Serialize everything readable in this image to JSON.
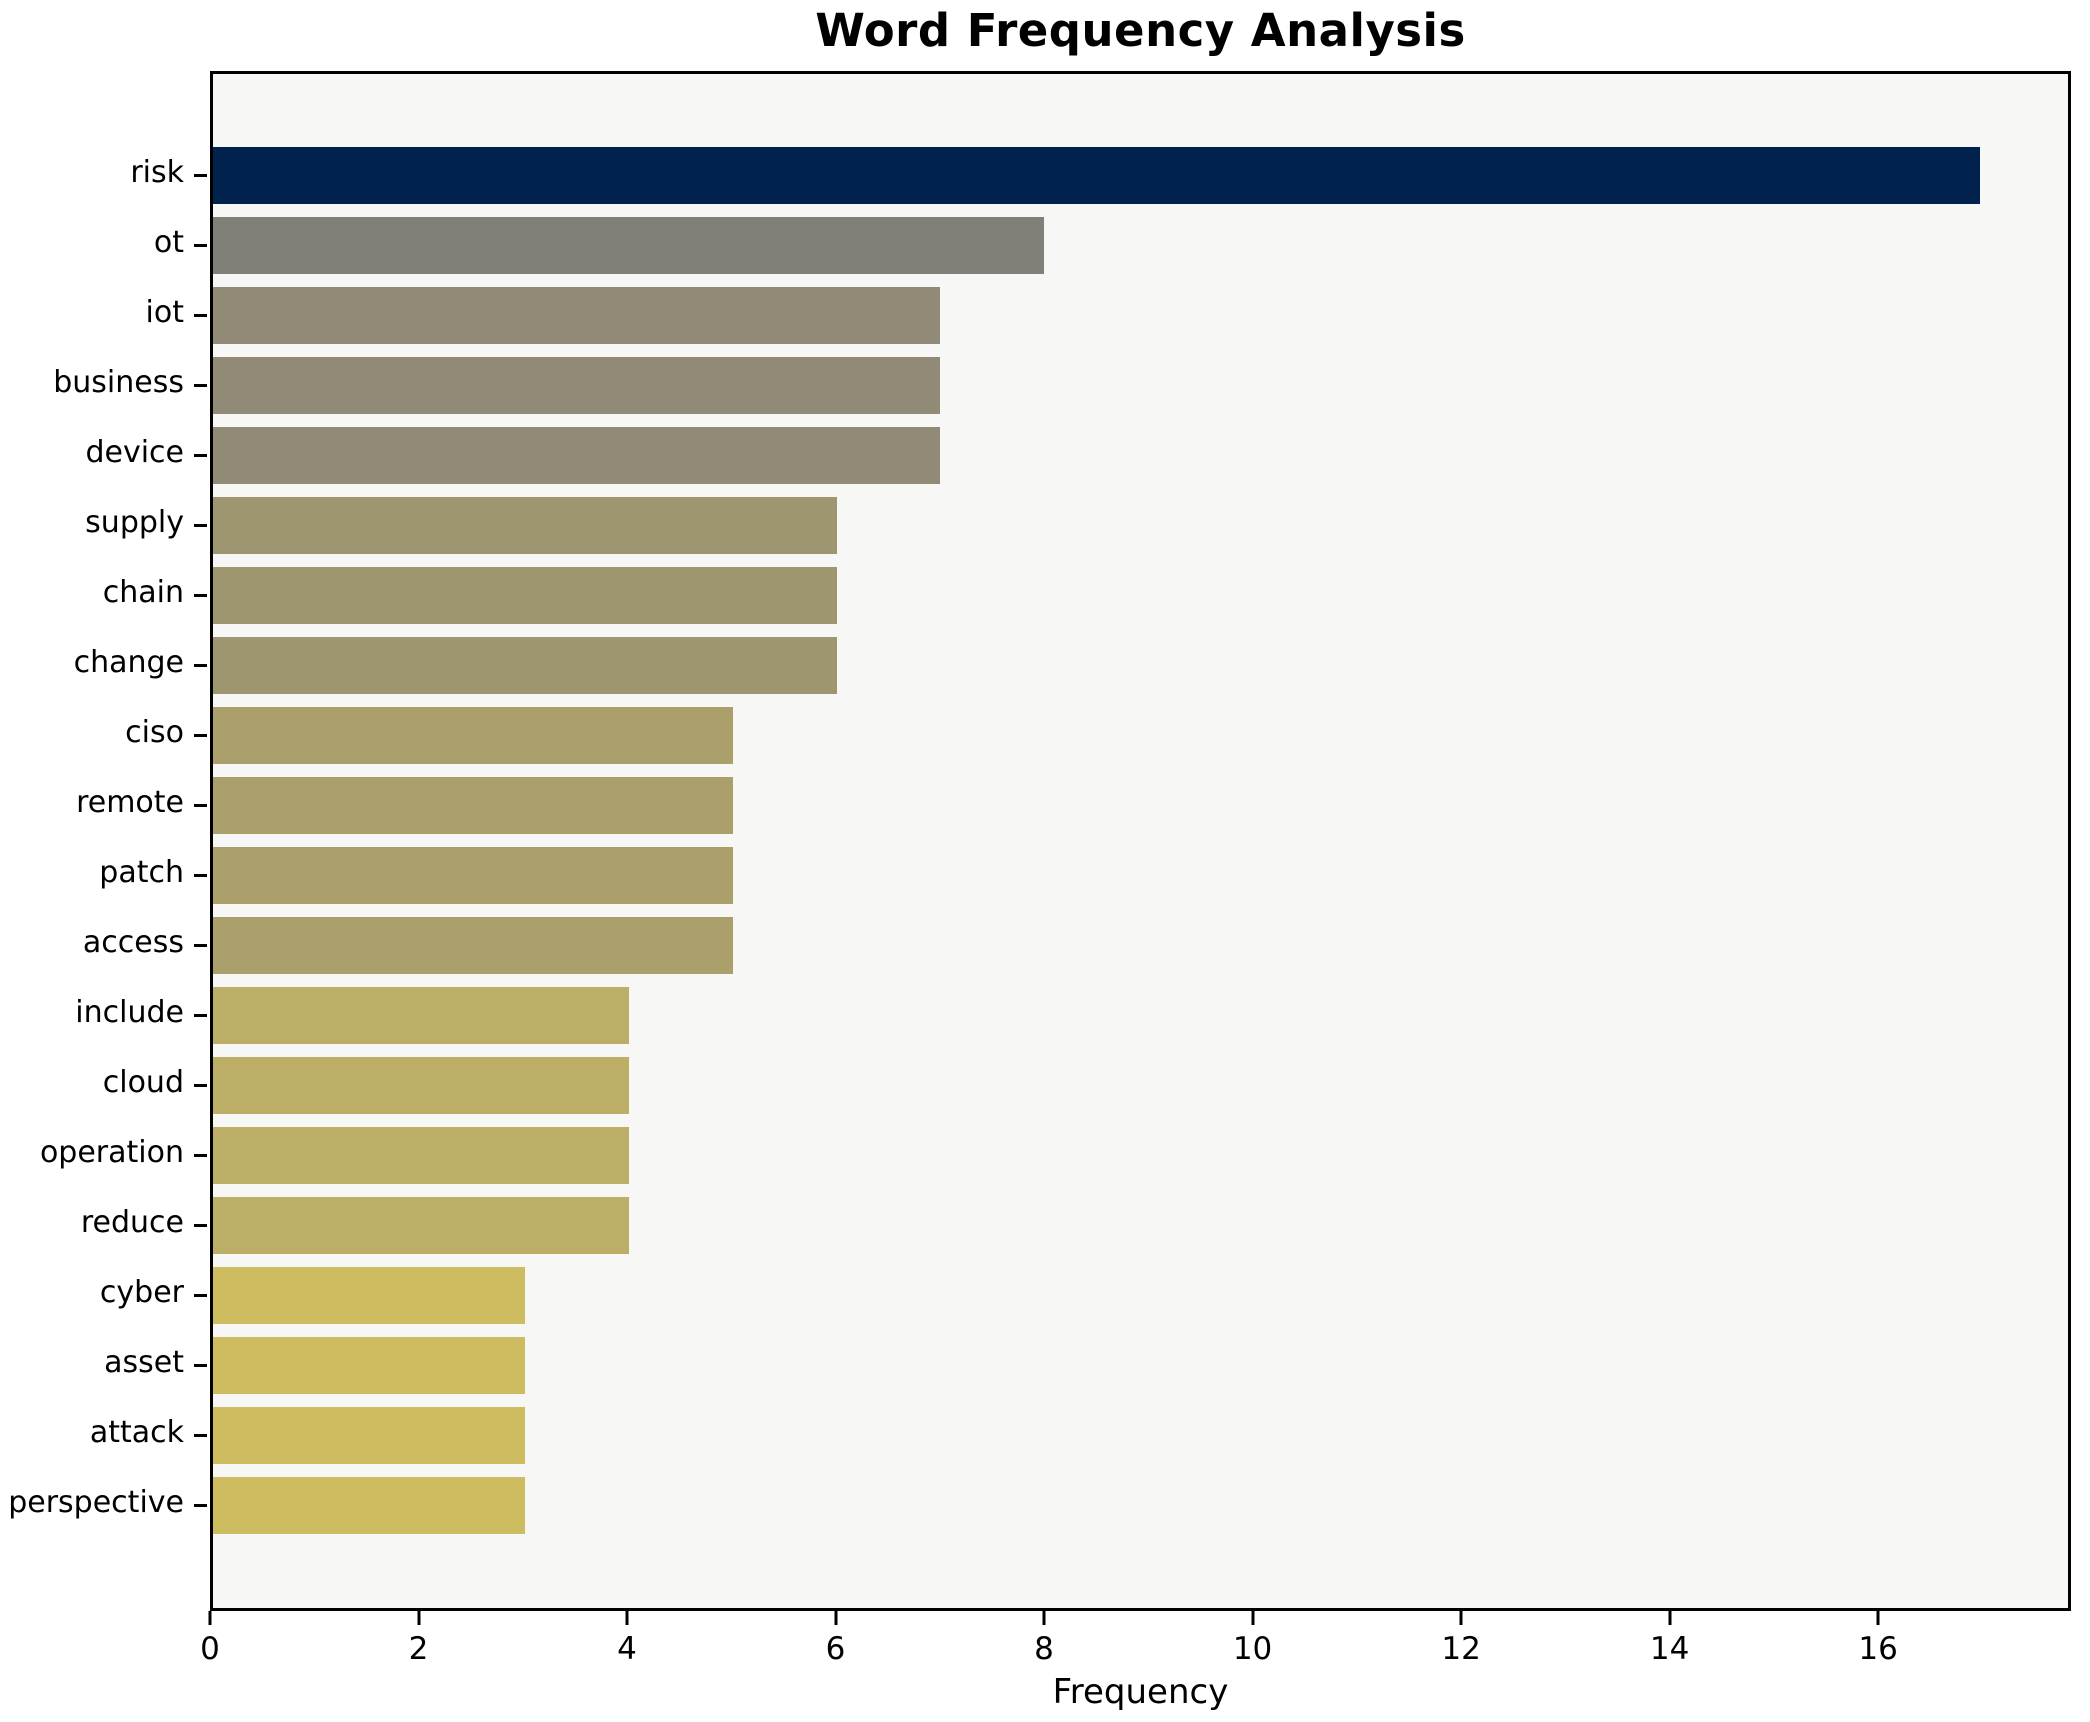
{
  "chart_data": {
    "type": "bar",
    "orientation": "horizontal",
    "title": "Word Frequency Analysis",
    "xlabel": "Frequency",
    "ylabel": "",
    "categories": [
      "risk",
      "ot",
      "iot",
      "business",
      "device",
      "supply",
      "chain",
      "change",
      "ciso",
      "remote",
      "patch",
      "access",
      "include",
      "cloud",
      "operation",
      "reduce",
      "cyber",
      "asset",
      "attack",
      "perspective"
    ],
    "values": [
      17,
      8,
      7,
      7,
      7,
      6,
      6,
      6,
      5,
      5,
      5,
      5,
      4,
      4,
      4,
      4,
      3,
      3,
      3,
      3
    ],
    "bar_colors": [
      "#02224e",
      "#818078",
      "#908a76",
      "#908a76",
      "#908a76",
      "#9d9671",
      "#9d9671",
      "#9d9671",
      "#ab9f6b",
      "#ab9f6b",
      "#ab9f6b",
      "#ab9f6b",
      "#bcae67",
      "#bcae67",
      "#bcae67",
      "#bcae67",
      "#cdbd60",
      "#cdbd60",
      "#cdbd60",
      "#cdbd60"
    ],
    "xlim": [
      0,
      17.85
    ],
    "xticks": [
      0,
      2,
      4,
      6,
      8,
      10,
      12,
      14,
      16
    ],
    "xtick_labels": [
      "0",
      "2",
      "4",
      "6",
      "8",
      "10",
      "12",
      "14",
      "16"
    ],
    "grid": false,
    "legend": "none",
    "plot_bg": "#f7f7f5",
    "figure_bg": "#ffffff",
    "spine_color": "#000000"
  }
}
